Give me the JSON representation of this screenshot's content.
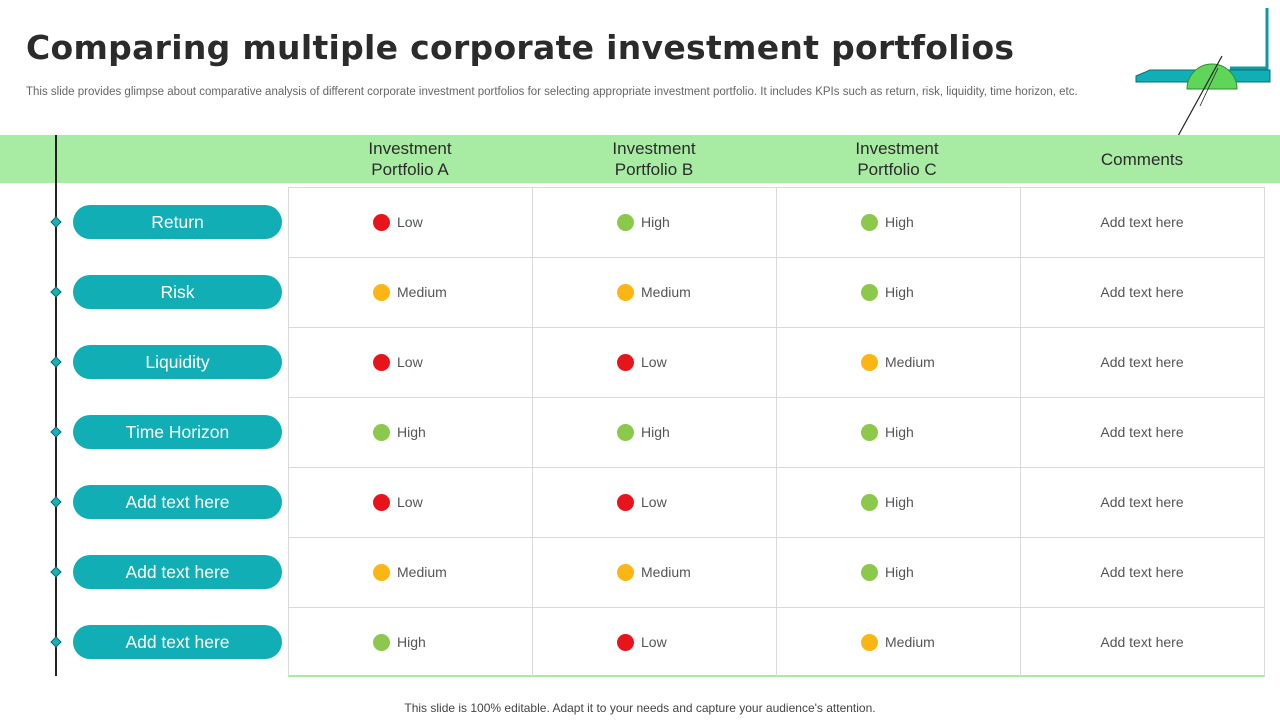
{
  "title": "Comparing multiple corporate investment portfolios",
  "subtitle": "This slide provides glimpse about comparative analysis of different corporate investment portfolios for selecting appropriate investment portfolio. It includes KPIs such as return, risk, liquidity, time horizon, etc.",
  "columns": [
    "Investment\nPortfolio A",
    "Investment\nPortfolio B",
    "Investment\nPortfolio C",
    "Comments"
  ],
  "colors": {
    "accent": "#12aeb5",
    "header_band": "#a8eca4",
    "low": "#e8141c",
    "medium": "#fbb615",
    "high": "#8cc84b"
  },
  "rows": [
    {
      "label": "Return",
      "a": "Low",
      "b": "High",
      "c": "High",
      "comment": "Add text here"
    },
    {
      "label": "Risk",
      "a": "Medium",
      "b": "Medium",
      "c": "High",
      "comment": "Add text here"
    },
    {
      "label": "Liquidity",
      "a": "Low",
      "b": "Low",
      "c": "Medium",
      "comment": "Add text here"
    },
    {
      "label": "Time Horizon",
      "a": "High",
      "b": "High",
      "c": "High",
      "comment": "Add text here"
    },
    {
      "label": "Add text here",
      "a": "Low",
      "b": "Low",
      "c": "High",
      "comment": "Add text here"
    },
    {
      "label": "Add text here",
      "a": "Medium",
      "b": "Medium",
      "c": "High",
      "comment": "Add text here"
    },
    {
      "label": "Add text here",
      "a": "High",
      "b": "Low",
      "c": "Medium",
      "comment": "Add text here"
    }
  ],
  "footer": "This slide is 100% editable. Adapt it to your needs and capture your audience's attention."
}
